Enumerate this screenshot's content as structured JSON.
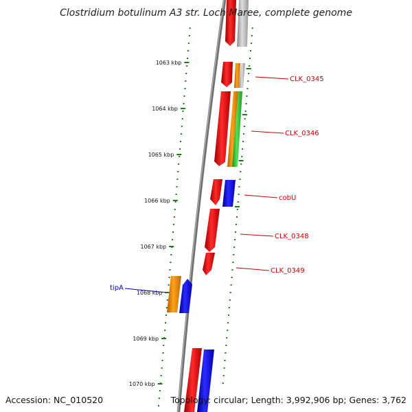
{
  "title": "Clostridium botulinum A3 str. Loch Maree, complete genome",
  "footer": {
    "accession": "Accession: NC_010520",
    "summary": "Topology: circular; Length: 3,992,906 bp; Genes: 3,762"
  },
  "scale": {
    "unit": "kbp",
    "ticks": [
      "1063 kbp",
      "1064 kbp",
      "1065 kbp",
      "1066 kbp",
      "1067 kbp",
      "1068 kbp",
      "1069 kbp",
      "1070 kbp"
    ]
  },
  "genes": [
    {
      "name": "CLK_0345",
      "color": "#cc0000"
    },
    {
      "name": "CLK_0346",
      "color": "#cc0000"
    },
    {
      "name": "cobU",
      "color": "#cc0000"
    },
    {
      "name": "CLK_0348",
      "color": "#cc0000"
    },
    {
      "name": "CLK_0349",
      "color": "#cc0000"
    },
    {
      "name": "tipA",
      "color": "#0000cc"
    }
  ],
  "colors": {
    "backbone": "#777777",
    "tick": "#1a7a1a",
    "red": "#ff0000",
    "orange": "#ff9900",
    "green": "#33cc33",
    "blue": "#0000ff",
    "gray": "#bbbbbb"
  }
}
